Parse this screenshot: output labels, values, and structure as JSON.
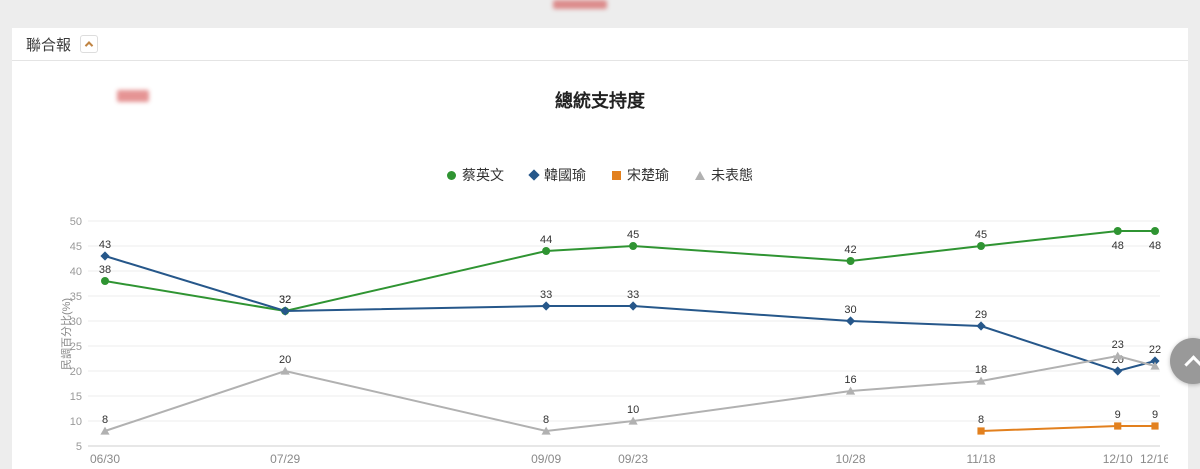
{
  "header": {
    "source_label": "聯合報"
  },
  "chart_data": {
    "type": "line",
    "title": "總統支持度",
    "xlabel": "",
    "ylabel": "民調百分比(%)",
    "ylim": [
      5,
      50
    ],
    "yticks": [
      50,
      45,
      40,
      35,
      30,
      25,
      20,
      15,
      10,
      5
    ],
    "grid": true,
    "legend_position": "top",
    "categories": [
      "06/30",
      "07/29",
      "09/09",
      "09/23",
      "10/28",
      "11/18",
      "12/10",
      "12/16"
    ],
    "x_day_offsets": [
      0,
      29,
      71,
      85,
      120,
      141,
      163,
      169
    ],
    "series": [
      {
        "name": "蔡英文",
        "color": "#2f9432",
        "marker": "circle",
        "values": [
          38,
          32,
          44,
          45,
          42,
          45,
          48,
          48
        ]
      },
      {
        "name": "韓國瑜",
        "color": "#26578a",
        "marker": "diamond",
        "values": [
          43,
          32,
          33,
          33,
          30,
          29,
          20,
          22
        ]
      },
      {
        "name": "宋楚瑜",
        "color": "#e2801e",
        "marker": "square",
        "values": [
          null,
          null,
          null,
          null,
          null,
          8,
          9,
          9
        ]
      },
      {
        "name": "未表態",
        "color": "#b1b1b1",
        "marker": "triangle",
        "values": [
          8,
          20,
          8,
          10,
          16,
          18,
          23,
          21
        ],
        "label_hidden": [
          7
        ]
      }
    ]
  }
}
